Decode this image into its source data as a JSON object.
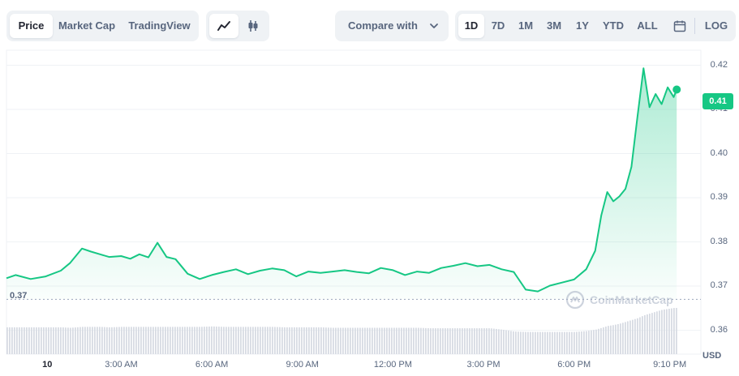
{
  "tabs": {
    "items": [
      {
        "label": "Price",
        "active": true
      },
      {
        "label": "Market Cap",
        "active": false
      },
      {
        "label": "TradingView",
        "active": false
      }
    ]
  },
  "chart_type_toggle": {
    "items": [
      {
        "icon": "line-chart-icon",
        "active": true
      },
      {
        "icon": "candlestick-icon",
        "active": false
      }
    ]
  },
  "compare": {
    "label": "Compare with",
    "icon": "chevron-down-icon"
  },
  "ranges": {
    "items": [
      {
        "label": "1D",
        "active": true
      },
      {
        "label": "7D",
        "active": false
      },
      {
        "label": "1M",
        "active": false
      },
      {
        "label": "3M",
        "active": false
      },
      {
        "label": "1Y",
        "active": false
      },
      {
        "label": "YTD",
        "active": false
      },
      {
        "label": "ALL",
        "active": false
      }
    ],
    "calendar_icon": "calendar-icon",
    "log_label": "LOG"
  },
  "colors": {
    "accent": "#16c784",
    "grid": "#eff2f5",
    "text_muted": "#58667e"
  },
  "watermark": {
    "text": "CoinMarketCap"
  },
  "currency_label": "USD",
  "current_price_tag": "0.41",
  "reference_label": "0.37",
  "chart_data": {
    "type": "area",
    "title": "",
    "ylim": [
      0.3546,
      0.4234
    ],
    "y_ticks": [
      "0.42",
      "0.41",
      "0.40",
      "0.39",
      "0.38",
      "0.37",
      "0.36"
    ],
    "y_tick_values": [
      0.42,
      0.41,
      0.4,
      0.39,
      0.38,
      0.37,
      0.36
    ],
    "x_ticks": [
      "10",
      "3:00 AM",
      "6:00 AM",
      "9:00 AM",
      "12:00 PM",
      "3:00 PM",
      "6:00 PM",
      "9:10 PM"
    ],
    "x_tick_hours": [
      0.55,
      3,
      6,
      9,
      12,
      15,
      18,
      21.17
    ],
    "x_range_hours": [
      -0.8,
      22.2
    ],
    "reference_price": 0.367,
    "series": [
      {
        "x": [
          -0.8,
          -0.5,
          0,
          0.5,
          1,
          1.3,
          1.7,
          2,
          2.3,
          2.6,
          3,
          3.3,
          3.6,
          3.9,
          4.2,
          4.5,
          4.8,
          5.2,
          5.6,
          6,
          6.4,
          6.8,
          7.2,
          7.6,
          8,
          8.4,
          8.8,
          9.2,
          9.6,
          10,
          10.4,
          10.8,
          11.2,
          11.6,
          12,
          12.4,
          12.8,
          13.2,
          13.6,
          14,
          14.4,
          14.8,
          15.2,
          15.6,
          16,
          16.4,
          16.8,
          17.2,
          17.6,
          18,
          18.4,
          18.7,
          18.9,
          19.1,
          19.3,
          19.5,
          19.7,
          19.9,
          20.1,
          20.3,
          20.5,
          20.7,
          20.9,
          21.1,
          21.3,
          21.4
        ],
        "y": [
          0.3718,
          0.3725,
          0.3716,
          0.3722,
          0.3735,
          0.3752,
          0.3785,
          0.3778,
          0.3772,
          0.3766,
          0.3768,
          0.3762,
          0.3772,
          0.3765,
          0.3798,
          0.3766,
          0.3761,
          0.3728,
          0.3716,
          0.3725,
          0.3732,
          0.3738,
          0.3727,
          0.3735,
          0.374,
          0.3736,
          0.3722,
          0.3733,
          0.373,
          0.3733,
          0.3736,
          0.3732,
          0.3729,
          0.3741,
          0.3736,
          0.3725,
          0.3733,
          0.373,
          0.3741,
          0.3746,
          0.3752,
          0.3745,
          0.3748,
          0.3738,
          0.3732,
          0.3692,
          0.3688,
          0.3701,
          0.3708,
          0.3715,
          0.3738,
          0.378,
          0.386,
          0.3913,
          0.3892,
          0.3903,
          0.392,
          0.397,
          0.4083,
          0.4193,
          0.4105,
          0.4135,
          0.4112,
          0.415,
          0.4128,
          0.4145
        ],
        "volume": [
          0.58,
          0.58,
          0.58,
          0.58,
          0.58,
          0.57,
          0.59,
          0.59,
          0.59,
          0.58,
          0.59,
          0.59,
          0.59,
          0.59,
          0.59,
          0.59,
          0.59,
          0.59,
          0.59,
          0.6,
          0.59,
          0.59,
          0.59,
          0.59,
          0.59,
          0.58,
          0.58,
          0.58,
          0.58,
          0.57,
          0.57,
          0.57,
          0.57,
          0.57,
          0.57,
          0.57,
          0.57,
          0.56,
          0.56,
          0.56,
          0.56,
          0.56,
          0.56,
          0.53,
          0.49,
          0.48,
          0.48,
          0.48,
          0.48,
          0.48,
          0.5,
          0.53,
          0.57,
          0.61,
          0.63,
          0.66,
          0.7,
          0.74,
          0.78,
          0.84,
          0.88,
          0.92,
          0.96,
          0.98,
          1.0,
          1.0
        ]
      }
    ]
  }
}
